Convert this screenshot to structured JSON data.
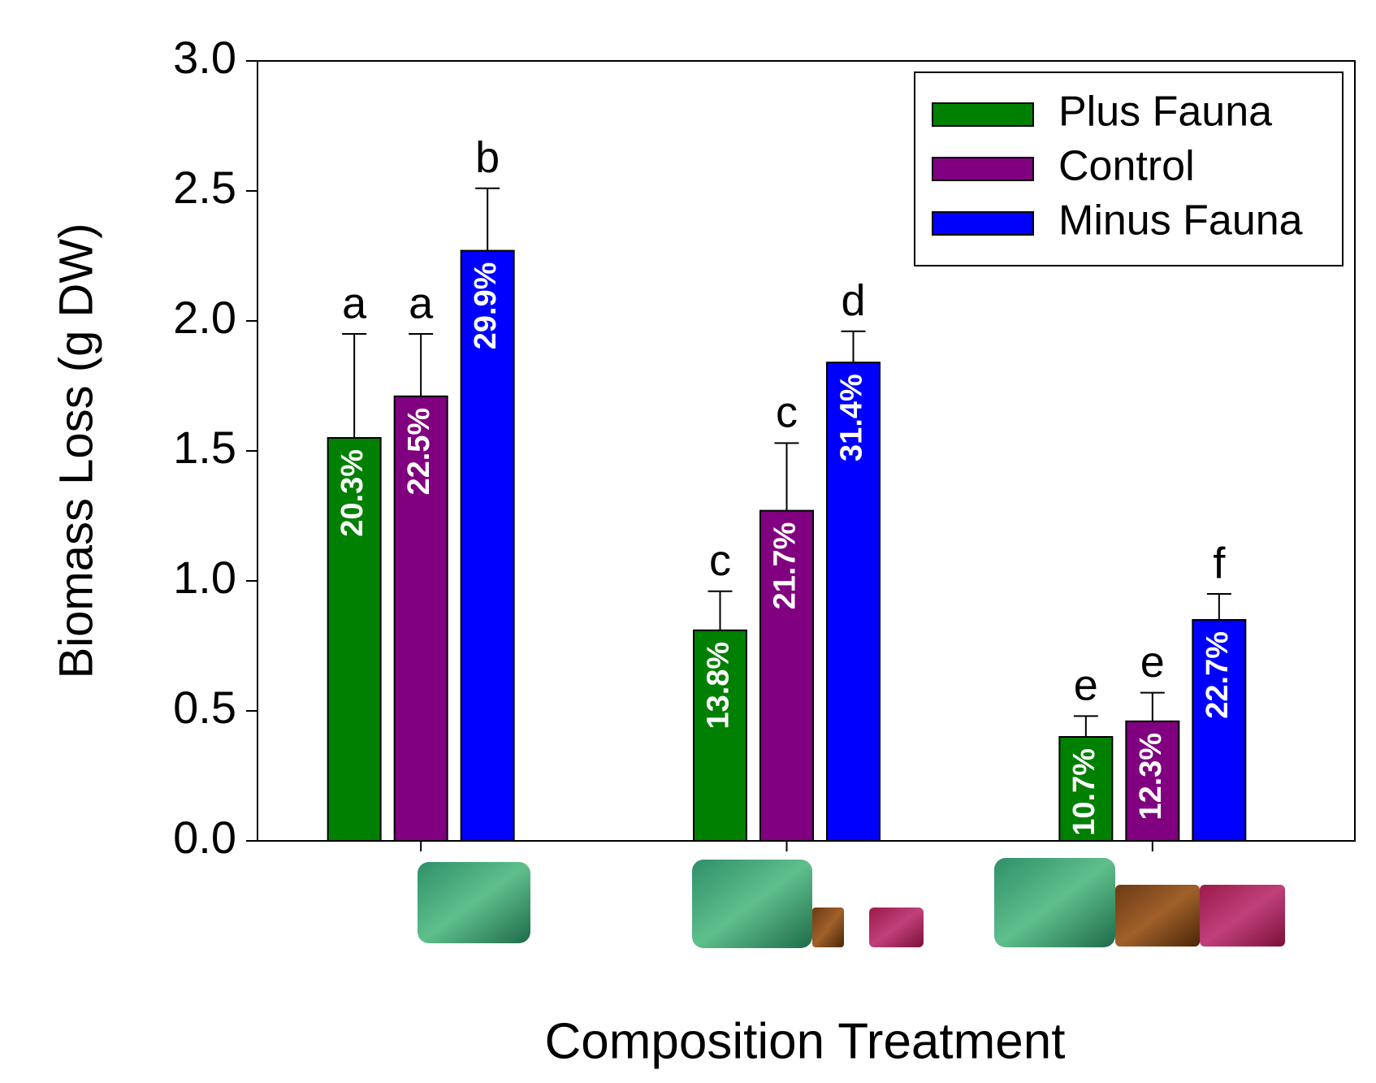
{
  "chart_data": {
    "type": "bar",
    "x_label": "Composition Treatment",
    "y_label": "Biomass Loss (g DW)",
    "categories": [
      null,
      null,
      null
    ],
    "series": [
      {
        "name": "Plus Fauna",
        "color": "#008000",
        "values": [
          1.55,
          0.81,
          0.4
        ],
        "errors": [
          0.4,
          0.15,
          0.08
        ],
        "percent_labels": [
          "20.3%",
          "13.8%",
          "10.7%"
        ],
        "letters": [
          "a",
          "c",
          "e"
        ]
      },
      {
        "name": "Control",
        "color": "#800080",
        "values": [
          1.71,
          1.27,
          0.46
        ],
        "errors": [
          0.24,
          0.26,
          0.11
        ],
        "percent_labels": [
          "22.5%",
          "21.7%",
          "12.3%"
        ],
        "letters": [
          "a",
          "c",
          "e"
        ]
      },
      {
        "name": "Minus Fauna",
        "color": "#0000ff",
        "values": [
          2.27,
          1.84,
          0.85
        ],
        "errors": [
          0.24,
          0.12,
          0.1
        ],
        "percent_labels": [
          "29.9%",
          "31.4%",
          "22.7%"
        ],
        "letters": [
          "b",
          "d",
          "f"
        ]
      }
    ],
    "ylim": [
      0,
      3
    ],
    "yticks": [
      {
        "value": 0,
        "label": "0.0"
      },
      0.5,
      {
        "value": 1,
        "label": "1.0"
      },
      1.5,
      {
        "value": 2,
        "label": "2.0"
      },
      2.5,
      {
        "value": 3,
        "label": "3.0"
      }
    ],
    "legend": "upper right"
  }
}
